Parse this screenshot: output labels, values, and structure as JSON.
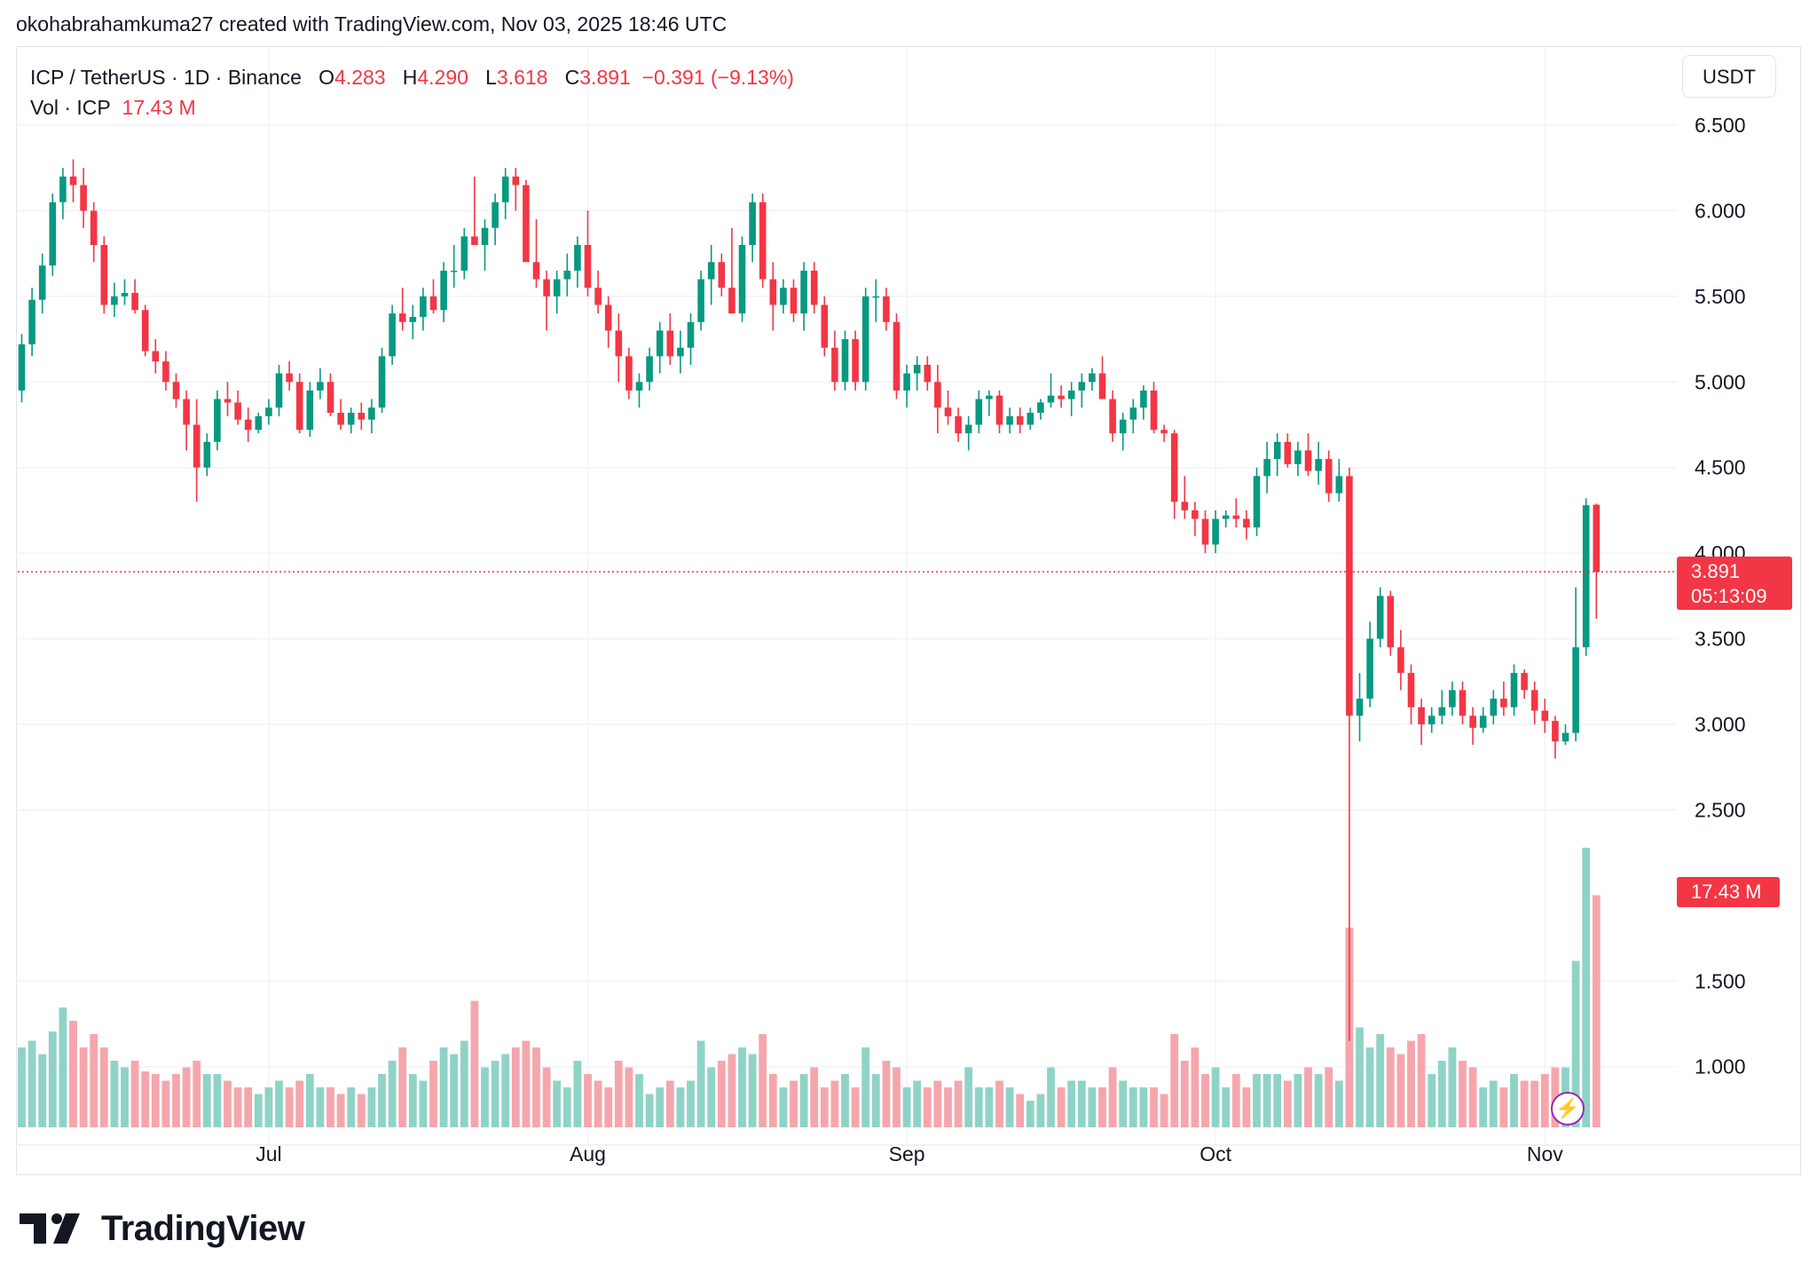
{
  "header": {
    "credit": "okohabrahamkuma27 created with TradingView.com, Nov 03, 2025 18:46 UTC"
  },
  "legend": {
    "symbol": "ICP / TetherUS · 1D · Binance",
    "o_label": "O",
    "o_value": "4.283",
    "h_label": "H",
    "h_value": "4.290",
    "l_label": "L",
    "l_value": "3.618",
    "c_label": "C",
    "c_value": "3.891",
    "change": "−0.391 (−9.13%)",
    "vol_label": "Vol · ICP",
    "vol_value": "17.43 M"
  },
  "currency": "USDT",
  "last_price": {
    "price": "3.891",
    "countdown": "05:13:09"
  },
  "volume_tag": "17.43 M",
  "footer": {
    "brand": "TradingView"
  },
  "colors": {
    "up": "#089981",
    "down": "#f23645",
    "up_vol": "#8fd3c6",
    "down_vol": "#f5a6ad",
    "grid": "#f0f3fa"
  },
  "chart_data": {
    "type": "candlestick",
    "title": "ICP / TetherUS · 1D · Binance",
    "price_axis": {
      "ticks": [
        "6.500",
        "6.000",
        "5.500",
        "5.000",
        "4.500",
        "4.000",
        "3.500",
        "3.000",
        "2.500",
        "1.500",
        "1.000"
      ],
      "ylim": [
        0.7,
        6.65
      ]
    },
    "time_axis": {
      "labels": [
        "Jul",
        "Aug",
        "Sep",
        "Oct",
        "Nov"
      ],
      "label_days": [
        24,
        55,
        86,
        116,
        148
      ]
    },
    "last_price": 3.891,
    "volume_max": 20,
    "ohlcv": [
      [
        4.95,
        5.28,
        4.88,
        5.22,
        6.0
      ],
      [
        5.22,
        5.55,
        5.15,
        5.48,
        6.5
      ],
      [
        5.48,
        5.75,
        5.4,
        5.68,
        5.5
      ],
      [
        5.68,
        6.1,
        5.62,
        6.05,
        7.2
      ],
      [
        6.05,
        6.25,
        5.95,
        6.2,
        9.0
      ],
      [
        6.2,
        6.3,
        6.05,
        6.15,
        8.0
      ],
      [
        6.15,
        6.25,
        5.9,
        6.0,
        6.0
      ],
      [
        6.0,
        6.05,
        5.7,
        5.8,
        7.0
      ],
      [
        5.8,
        5.85,
        5.4,
        5.45,
        6.0
      ],
      [
        5.45,
        5.58,
        5.38,
        5.5,
        5.0
      ],
      [
        5.5,
        5.6,
        5.45,
        5.52,
        4.5
      ],
      [
        5.52,
        5.6,
        5.4,
        5.42,
        5.0
      ],
      [
        5.42,
        5.45,
        5.15,
        5.18,
        4.2
      ],
      [
        5.18,
        5.25,
        5.05,
        5.12,
        4.0
      ],
      [
        5.12,
        5.18,
        4.95,
        5.0,
        3.5
      ],
      [
        5.0,
        5.05,
        4.85,
        4.9,
        4.0
      ],
      [
        4.9,
        4.95,
        4.6,
        4.75,
        4.5
      ],
      [
        4.75,
        4.9,
        4.3,
        4.5,
        5.0
      ],
      [
        4.5,
        4.7,
        4.45,
        4.65,
        4.0
      ],
      [
        4.65,
        4.95,
        4.6,
        4.9,
        4.0
      ],
      [
        4.9,
        5.0,
        4.8,
        4.88,
        3.5
      ],
      [
        4.88,
        4.95,
        4.75,
        4.78,
        3.0
      ],
      [
        4.78,
        4.85,
        4.65,
        4.72,
        3.0
      ],
      [
        4.72,
        4.82,
        4.7,
        4.8,
        2.5
      ],
      [
        4.8,
        4.9,
        4.75,
        4.85,
        3.0
      ],
      [
        4.85,
        5.1,
        4.8,
        5.05,
        3.5
      ],
      [
        5.05,
        5.12,
        4.95,
        5.0,
        3.0
      ],
      [
        5.0,
        5.05,
        4.7,
        4.72,
        3.5
      ],
      [
        4.72,
        5.0,
        4.68,
        4.95,
        4.0
      ],
      [
        4.95,
        5.08,
        4.9,
        5.0,
        3.0
      ],
      [
        5.0,
        5.05,
        4.8,
        4.82,
        3.0
      ],
      [
        4.82,
        4.9,
        4.72,
        4.75,
        2.5
      ],
      [
        4.75,
        4.85,
        4.7,
        4.82,
        3.0
      ],
      [
        4.82,
        4.88,
        4.72,
        4.78,
        2.5
      ],
      [
        4.78,
        4.9,
        4.7,
        4.85,
        3.0
      ],
      [
        4.85,
        5.2,
        4.82,
        5.15,
        4.0
      ],
      [
        5.15,
        5.45,
        5.1,
        5.4,
        5.0
      ],
      [
        5.4,
        5.55,
        5.3,
        5.35,
        6.0
      ],
      [
        5.35,
        5.45,
        5.25,
        5.38,
        4.0
      ],
      [
        5.38,
        5.55,
        5.3,
        5.5,
        3.5
      ],
      [
        5.5,
        5.6,
        5.4,
        5.42,
        5.0
      ],
      [
        5.42,
        5.7,
        5.35,
        5.65,
        6.0
      ],
      [
        5.65,
        5.8,
        5.55,
        5.65,
        5.5
      ],
      [
        5.65,
        5.9,
        5.6,
        5.85,
        6.5
      ],
      [
        5.85,
        6.2,
        5.8,
        5.8,
        9.5
      ],
      [
        5.8,
        5.95,
        5.65,
        5.9,
        4.5
      ],
      [
        5.9,
        6.1,
        5.8,
        6.05,
        5.0
      ],
      [
        6.05,
        6.25,
        5.95,
        6.2,
        5.5
      ],
      [
        6.2,
        6.25,
        6.0,
        6.15,
        6.0
      ],
      [
        6.15,
        6.18,
        5.8,
        5.7,
        6.5
      ],
      [
        5.7,
        5.95,
        5.55,
        5.6,
        6.0
      ],
      [
        5.6,
        5.65,
        5.3,
        5.5,
        4.5
      ],
      [
        5.5,
        5.65,
        5.4,
        5.6,
        3.5
      ],
      [
        5.6,
        5.75,
        5.5,
        5.65,
        3.0
      ],
      [
        5.65,
        5.85,
        5.55,
        5.8,
        5.0
      ],
      [
        5.8,
        6.0,
        5.5,
        5.55,
        4.0
      ],
      [
        5.55,
        5.65,
        5.4,
        5.45,
        3.5
      ],
      [
        5.45,
        5.5,
        5.2,
        5.3,
        3.0
      ],
      [
        5.3,
        5.4,
        5.0,
        5.15,
        5.0
      ],
      [
        5.15,
        5.2,
        4.9,
        4.95,
        4.5
      ],
      [
        4.95,
        5.05,
        4.85,
        5.0,
        4.0
      ],
      [
        5.0,
        5.2,
        4.95,
        5.15,
        2.5
      ],
      [
        5.15,
        5.35,
        5.05,
        5.3,
        3.0
      ],
      [
        5.3,
        5.4,
        5.1,
        5.15,
        3.5
      ],
      [
        5.15,
        5.3,
        5.05,
        5.2,
        3.0
      ],
      [
        5.2,
        5.4,
        5.1,
        5.35,
        3.5
      ],
      [
        5.35,
        5.65,
        5.3,
        5.6,
        6.5
      ],
      [
        5.6,
        5.8,
        5.45,
        5.7,
        4.5
      ],
      [
        5.7,
        5.75,
        5.5,
        5.55,
        5.0
      ],
      [
        5.55,
        5.9,
        5.45,
        5.4,
        5.5
      ],
      [
        5.4,
        5.85,
        5.35,
        5.8,
        6.0
      ],
      [
        5.8,
        6.1,
        5.7,
        6.05,
        5.5
      ],
      [
        6.05,
        6.1,
        5.55,
        5.6,
        7.0
      ],
      [
        5.6,
        5.7,
        5.3,
        5.45,
        4.0
      ],
      [
        5.45,
        5.6,
        5.4,
        5.55,
        3.0
      ],
      [
        5.55,
        5.6,
        5.35,
        5.4,
        3.5
      ],
      [
        5.4,
        5.7,
        5.3,
        5.65,
        4.0
      ],
      [
        5.65,
        5.7,
        5.4,
        5.45,
        4.5
      ],
      [
        5.45,
        5.5,
        5.15,
        5.2,
        3.0
      ],
      [
        5.2,
        5.3,
        4.95,
        5.0,
        3.5
      ],
      [
        5.0,
        5.3,
        4.95,
        5.25,
        4.0
      ],
      [
        5.25,
        5.3,
        4.95,
        5.0,
        3.0
      ],
      [
        5.0,
        5.55,
        4.95,
        5.5,
        6.0
      ],
      [
        5.5,
        5.6,
        5.35,
        5.5,
        4.0
      ],
      [
        5.5,
        5.55,
        5.3,
        5.35,
        5.0
      ],
      [
        5.35,
        5.4,
        4.9,
        4.95,
        4.5
      ],
      [
        4.95,
        5.1,
        4.85,
        5.05,
        3.0
      ],
      [
        5.05,
        5.15,
        4.95,
        5.1,
        3.5
      ],
      [
        5.1,
        5.15,
        4.95,
        5.0,
        3.0
      ],
      [
        5.0,
        5.1,
        4.7,
        4.85,
        3.5
      ],
      [
        4.85,
        4.95,
        4.75,
        4.8,
        3.0
      ],
      [
        4.8,
        4.85,
        4.65,
        4.7,
        3.5
      ],
      [
        4.7,
        4.8,
        4.6,
        4.75,
        4.5
      ],
      [
        4.75,
        4.95,
        4.7,
        4.9,
        3.0
      ],
      [
        4.9,
        4.95,
        4.8,
        4.92,
        3.0
      ],
      [
        4.92,
        4.95,
        4.7,
        4.75,
        3.5
      ],
      [
        4.75,
        4.85,
        4.7,
        4.8,
        3.0
      ],
      [
        4.8,
        4.85,
        4.7,
        4.75,
        2.5
      ],
      [
        4.75,
        4.85,
        4.72,
        4.82,
        2.0
      ],
      [
        4.82,
        4.9,
        4.78,
        4.88,
        2.5
      ],
      [
        4.88,
        5.05,
        4.85,
        4.92,
        4.5
      ],
      [
        4.92,
        4.98,
        4.85,
        4.9,
        3.0
      ],
      [
        4.9,
        5.0,
        4.8,
        4.95,
        3.5
      ],
      [
        4.95,
        5.05,
        4.85,
        5.0,
        3.5
      ],
      [
        5.0,
        5.08,
        4.95,
        5.05,
        3.0
      ],
      [
        5.05,
        5.15,
        4.95,
        4.9,
        3.0
      ],
      [
        4.9,
        4.95,
        4.65,
        4.7,
        4.5
      ],
      [
        4.7,
        4.82,
        4.6,
        4.78,
        3.5
      ],
      [
        4.78,
        4.9,
        4.7,
        4.85,
        3.0
      ],
      [
        4.85,
        4.98,
        4.78,
        4.95,
        3.0
      ],
      [
        4.95,
        5.0,
        4.7,
        4.72,
        3.0
      ],
      [
        4.72,
        4.75,
        4.65,
        4.7,
        2.5
      ],
      [
        4.7,
        4.72,
        4.2,
        4.3,
        7.0
      ],
      [
        4.3,
        4.45,
        4.2,
        4.25,
        5.0
      ],
      [
        4.25,
        4.3,
        4.1,
        4.2,
        6.0
      ],
      [
        4.2,
        4.25,
        4.0,
        4.05,
        4.0
      ],
      [
        4.05,
        4.25,
        4.0,
        4.2,
        4.5
      ],
      [
        4.2,
        4.25,
        4.15,
        4.22,
        3.0
      ],
      [
        4.22,
        4.32,
        4.15,
        4.2,
        4.0
      ],
      [
        4.2,
        4.25,
        4.08,
        4.15,
        3.0
      ],
      [
        4.15,
        4.5,
        4.1,
        4.45,
        4.0
      ],
      [
        4.45,
        4.65,
        4.35,
        4.55,
        4.0
      ],
      [
        4.55,
        4.7,
        4.45,
        4.65,
        4.0
      ],
      [
        4.65,
        4.7,
        4.5,
        4.52,
        3.5
      ],
      [
        4.52,
        4.65,
        4.45,
        4.6,
        4.0
      ],
      [
        4.6,
        4.7,
        4.45,
        4.48,
        4.5
      ],
      [
        4.48,
        4.65,
        4.4,
        4.55,
        4.0
      ],
      [
        4.55,
        4.6,
        4.3,
        4.35,
        4.5
      ],
      [
        4.35,
        4.55,
        4.3,
        4.45,
        3.5
      ],
      [
        4.45,
        4.5,
        1.15,
        3.05,
        15.0
      ],
      [
        3.05,
        3.3,
        2.9,
        3.15,
        7.5
      ],
      [
        3.15,
        3.6,
        3.1,
        3.5,
        6.0
      ],
      [
        3.5,
        3.8,
        3.45,
        3.75,
        7.0
      ],
      [
        3.75,
        3.78,
        3.4,
        3.45,
        6.0
      ],
      [
        3.45,
        3.55,
        3.2,
        3.3,
        5.5
      ],
      [
        3.3,
        3.35,
        3.0,
        3.1,
        6.5
      ],
      [
        3.1,
        3.15,
        2.88,
        3.0,
        7.0
      ],
      [
        3.0,
        3.1,
        2.95,
        3.05,
        4.0
      ],
      [
        3.05,
        3.2,
        3.0,
        3.1,
        5.0
      ],
      [
        3.1,
        3.25,
        3.05,
        3.2,
        6.0
      ],
      [
        3.2,
        3.25,
        3.0,
        3.05,
        5.0
      ],
      [
        3.05,
        3.1,
        2.88,
        2.98,
        4.5
      ],
      [
        2.98,
        3.1,
        2.95,
        3.05,
        3.0
      ],
      [
        3.05,
        3.2,
        3.0,
        3.15,
        3.5
      ],
      [
        3.15,
        3.25,
        3.05,
        3.1,
        3.0
      ],
      [
        3.1,
        3.35,
        3.05,
        3.3,
        4.0
      ],
      [
        3.3,
        3.32,
        3.15,
        3.2,
        3.5
      ],
      [
        3.2,
        3.25,
        3.0,
        3.08,
        3.5
      ],
      [
        3.08,
        3.15,
        2.95,
        3.02,
        4.0
      ],
      [
        3.02,
        3.05,
        2.8,
        2.9,
        4.5
      ],
      [
        2.9,
        3.0,
        2.88,
        2.95,
        4.5
      ],
      [
        2.95,
        3.8,
        2.9,
        3.45,
        12.5
      ],
      [
        3.45,
        4.32,
        3.4,
        4.28,
        21.0
      ],
      [
        4.283,
        4.29,
        3.618,
        3.891,
        17.43
      ]
    ]
  }
}
